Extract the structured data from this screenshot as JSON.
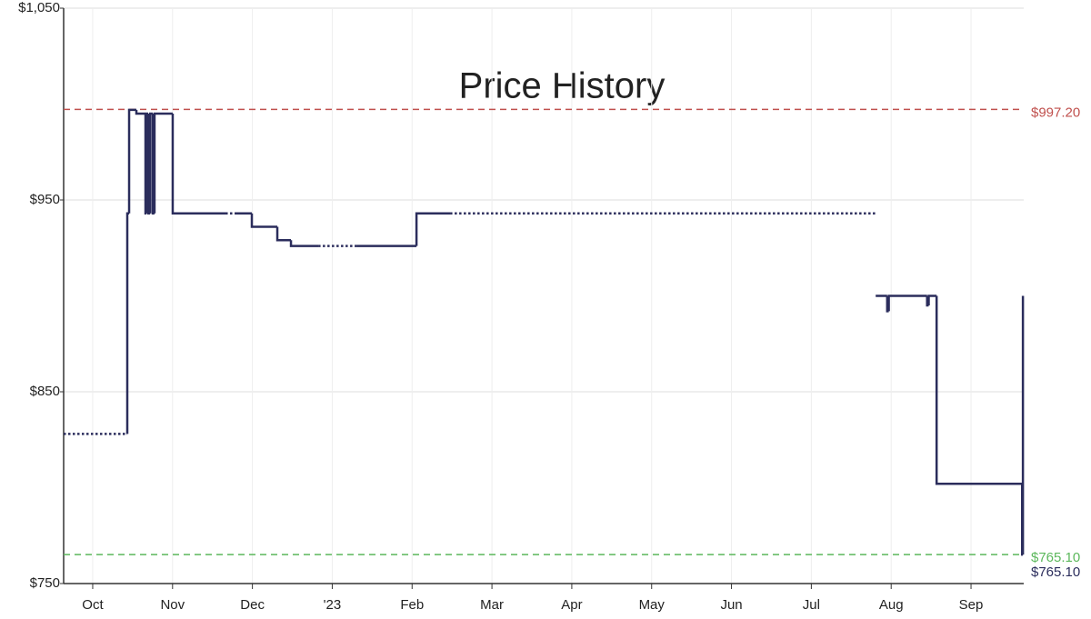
{
  "chart_data": {
    "type": "step",
    "title": "Price History",
    "xlim": [
      -0.364,
      11.66
    ],
    "xticks": [
      {
        "value": 0,
        "label": "Oct"
      },
      {
        "value": 1,
        "label": "Nov"
      },
      {
        "value": 2,
        "label": "Dec"
      },
      {
        "value": 3,
        "label": "'23"
      },
      {
        "value": 4,
        "label": "Feb"
      },
      {
        "value": 5,
        "label": "Mar"
      },
      {
        "value": 6,
        "label": "Apr"
      },
      {
        "value": 7,
        "label": "May"
      },
      {
        "value": 8,
        "label": "Jun"
      },
      {
        "value": 9,
        "label": "Jul"
      },
      {
        "value": 10,
        "label": "Aug"
      },
      {
        "value": 11,
        "label": "Sep"
      }
    ],
    "ylim": [
      750,
      1050
    ],
    "yticks": [
      {
        "value": 750,
        "label": "$750"
      },
      {
        "value": 850,
        "label": "$850"
      },
      {
        "value": 950,
        "label": "$950"
      },
      {
        "value": 1050,
        "label": "$1,050"
      }
    ],
    "grid": true,
    "series": [
      {
        "color": "#2b2d5c",
        "dash": false,
        "x": [
          0.43,
          0.433,
          0.456,
          0.547,
          0.661,
          0.672,
          0.695,
          0.72,
          0.752,
          0.774,
          1.002,
          1.663,
          1.777,
          1.993,
          2.312,
          2.483,
          2.825,
          3.303,
          4.055,
          4.476,
          9.806,
          9.95,
          9.97,
          10.45,
          10.47,
          10.569,
          11.64,
          11.65
        ],
        "values": [
          828,
          943,
          997,
          995,
          943,
          995,
          943,
          995,
          943,
          995,
          943,
          null,
          943,
          936,
          929,
          926,
          null,
          926,
          943,
          null,
          900,
          892,
          900,
          895,
          900,
          802,
          765.1,
          900
        ]
      },
      {
        "color": "#2b2d5c",
        "dash": true,
        "x": [
          -0.364,
          0.43,
          1.663,
          1.777,
          2.825,
          3.303,
          4.476,
          9.806
        ],
        "values": [
          828,
          null,
          943,
          null,
          926,
          null,
          943,
          null
        ]
      }
    ],
    "reference_lines": [
      {
        "value": 997.2,
        "label": "$997.20",
        "color": "#c0504d"
      },
      {
        "value": 765.1,
        "label": "$765.10",
        "color": "#5cb85c"
      }
    ],
    "current": {
      "value": 765.1,
      "label": "$765.10",
      "color": "#2b2d5c"
    }
  }
}
